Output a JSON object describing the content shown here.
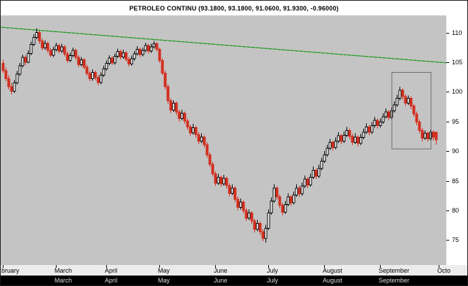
{
  "colors": {
    "background": "#c4c4c4",
    "up_fill": "#ffffff",
    "up_stroke": "#000000",
    "down": "#d22f1f",
    "trendline": "#2f9e2f",
    "box": "#6b6b6b"
  },
  "bottom_strip": {
    "labels": [
      {
        "label": "March",
        "i": 19
      },
      {
        "label": "April",
        "i": 37
      },
      {
        "label": "May",
        "i": 56
      },
      {
        "label": "June",
        "i": 76
      },
      {
        "label": "July",
        "i": 95
      },
      {
        "label": "August",
        "i": 115
      },
      {
        "label": "September",
        "i": 135
      }
    ]
  },
  "chart_data": {
    "type": "candlestick",
    "title": "PETROLEO CONTINU (93.1800, 93.1800, 91.0600, 91.9300, -0.96000)",
    "ylim": [
      70.8,
      112.9
    ],
    "y_ticks": [
      110,
      105,
      100,
      95,
      90,
      85,
      80,
      75
    ],
    "x_ticks": [
      {
        "label": "bruary",
        "i": 0
      },
      {
        "label": "March",
        "i": 19
      },
      {
        "label": "April",
        "i": 37
      },
      {
        "label": "May",
        "i": 56
      },
      {
        "label": "June",
        "i": 76
      },
      {
        "label": "July",
        "i": 95
      },
      {
        "label": "August",
        "i": 115
      },
      {
        "label": "September",
        "i": 135
      },
      {
        "label": "Octo",
        "i": 156
      }
    ],
    "trendline": {
      "from_value": 110.9,
      "to_value": 104.9
    },
    "highlight_box": {
      "from_index": 139.2,
      "to_index": 153.2,
      "top_value": 103.3,
      "bottom_value": 90.4
    },
    "last_quote": {
      "open": 93.18,
      "high": 93.18,
      "low": 91.06,
      "close": 91.93,
      "change": -0.96
    },
    "ohlc": [
      [
        104.8,
        105.4,
        103.2,
        103.6
      ],
      [
        103.6,
        104.1,
        101.8,
        102.2
      ],
      [
        102.2,
        102.8,
        100.4,
        100.9
      ],
      [
        100.9,
        101.5,
        99.6,
        100.1
      ],
      [
        100.1,
        102.0,
        99.8,
        101.5
      ],
      [
        101.5,
        103.5,
        101.2,
        103.0
      ],
      [
        103.0,
        104.9,
        102.7,
        104.4
      ],
      [
        104.4,
        106.3,
        104.1,
        105.8
      ],
      [
        105.8,
        106.2,
        104.5,
        105.0
      ],
      [
        105.0,
        107.0,
        104.8,
        106.5
      ],
      [
        106.5,
        108.5,
        106.2,
        108.0
      ],
      [
        108.0,
        109.7,
        107.7,
        109.2
      ],
      [
        109.2,
        110.7,
        108.9,
        110.0
      ],
      [
        110.0,
        110.3,
        108.1,
        108.6
      ],
      [
        108.6,
        109.0,
        107.0,
        107.4
      ],
      [
        107.4,
        108.7,
        107.1,
        108.2
      ],
      [
        108.2,
        108.5,
        106.6,
        107.0
      ],
      [
        107.0,
        107.4,
        105.8,
        106.2
      ],
      [
        106.2,
        107.6,
        105.9,
        107.1
      ],
      [
        107.1,
        108.3,
        106.8,
        107.8
      ],
      [
        107.8,
        108.1,
        106.5,
        106.9
      ],
      [
        106.9,
        108.1,
        106.6,
        107.6
      ],
      [
        107.6,
        107.9,
        106.0,
        106.4
      ],
      [
        106.4,
        106.8,
        104.9,
        105.3
      ],
      [
        105.3,
        106.6,
        105.0,
        106.1
      ],
      [
        106.1,
        107.5,
        105.8,
        107.0
      ],
      [
        107.0,
        107.3,
        105.4,
        105.8
      ],
      [
        105.8,
        106.2,
        104.2,
        104.6
      ],
      [
        104.6,
        105.9,
        104.3,
        105.4
      ],
      [
        105.4,
        105.7,
        103.8,
        104.2
      ],
      [
        104.2,
        104.6,
        102.7,
        103.1
      ],
      [
        103.1,
        103.5,
        101.8,
        102.2
      ],
      [
        102.2,
        103.8,
        101.9,
        103.3
      ],
      [
        103.3,
        103.6,
        102.0,
        102.4
      ],
      [
        102.4,
        102.8,
        101.1,
        101.6
      ],
      [
        101.6,
        103.3,
        101.3,
        102.8
      ],
      [
        102.8,
        104.4,
        102.5,
        103.9
      ],
      [
        103.9,
        105.3,
        103.6,
        104.8
      ],
      [
        104.8,
        106.2,
        104.5,
        105.7
      ],
      [
        105.7,
        106.0,
        104.5,
        104.9
      ],
      [
        104.9,
        106.5,
        104.6,
        106.0
      ],
      [
        106.0,
        107.3,
        105.7,
        106.8
      ],
      [
        106.8,
        107.1,
        105.5,
        105.9
      ],
      [
        105.9,
        107.1,
        105.6,
        106.6
      ],
      [
        106.6,
        106.9,
        105.1,
        105.5
      ],
      [
        105.5,
        105.9,
        104.3,
        104.7
      ],
      [
        104.7,
        106.1,
        104.4,
        105.6
      ],
      [
        105.6,
        106.9,
        105.3,
        106.4
      ],
      [
        106.4,
        107.7,
        106.1,
        107.2
      ],
      [
        107.2,
        107.5,
        105.9,
        106.3
      ],
      [
        106.3,
        107.5,
        106.0,
        107.0
      ],
      [
        107.0,
        108.3,
        106.7,
        107.8
      ],
      [
        107.8,
        108.1,
        106.5,
        106.9
      ],
      [
        106.9,
        108.1,
        106.6,
        107.6
      ],
      [
        107.6,
        108.6,
        107.3,
        108.1
      ],
      [
        108.1,
        108.4,
        106.8,
        107.2
      ],
      [
        107.2,
        107.5,
        104.9,
        105.3
      ],
      [
        105.3,
        105.7,
        102.8,
        103.2
      ],
      [
        103.2,
        103.6,
        100.4,
        100.9
      ],
      [
        100.9,
        101.3,
        98.0,
        98.5
      ],
      [
        98.5,
        98.9,
        96.4,
        96.9
      ],
      [
        96.9,
        98.6,
        96.6,
        98.1
      ],
      [
        98.1,
        98.4,
        96.1,
        96.6
      ],
      [
        96.6,
        97.0,
        95.0,
        95.5
      ],
      [
        95.5,
        97.0,
        95.2,
        96.4
      ],
      [
        96.4,
        96.7,
        94.6,
        95.1
      ],
      [
        95.1,
        95.5,
        93.6,
        94.1
      ],
      [
        94.1,
        94.5,
        92.6,
        93.1
      ],
      [
        93.1,
        94.6,
        92.8,
        94.0
      ],
      [
        94.0,
        94.3,
        92.3,
        92.8
      ],
      [
        92.8,
        93.2,
        91.2,
        91.7
      ],
      [
        91.7,
        93.0,
        91.4,
        92.4
      ],
      [
        92.4,
        92.7,
        90.6,
        91.1
      ],
      [
        91.1,
        91.5,
        88.9,
        89.4
      ],
      [
        89.4,
        89.8,
        87.3,
        87.8
      ],
      [
        87.8,
        88.2,
        85.7,
        86.2
      ],
      [
        86.2,
        86.6,
        84.1,
        84.6
      ],
      [
        84.6,
        86.2,
        84.3,
        85.6
      ],
      [
        85.6,
        85.9,
        84.0,
        84.5
      ],
      [
        84.5,
        86.0,
        84.2,
        85.4
      ],
      [
        85.4,
        85.7,
        83.7,
        84.2
      ],
      [
        84.2,
        84.6,
        82.4,
        82.9
      ],
      [
        82.9,
        84.4,
        82.6,
        83.8
      ],
      [
        83.8,
        84.1,
        81.4,
        81.9
      ],
      [
        81.9,
        82.3,
        80.0,
        80.5
      ],
      [
        80.5,
        82.0,
        80.2,
        81.4
      ],
      [
        81.4,
        81.7,
        79.5,
        80.0
      ],
      [
        80.0,
        80.4,
        78.2,
        78.7
      ],
      [
        78.7,
        80.2,
        78.4,
        79.6
      ],
      [
        79.6,
        79.9,
        77.7,
        78.2
      ],
      [
        78.2,
        78.6,
        76.3,
        76.8
      ],
      [
        76.8,
        78.4,
        76.5,
        77.8
      ],
      [
        77.8,
        78.1,
        75.9,
        76.4
      ],
      [
        76.4,
        76.8,
        74.8,
        75.3
      ],
      [
        75.3,
        77.6,
        74.6,
        77.0
      ],
      [
        77.0,
        80.2,
        76.7,
        79.6
      ],
      [
        79.6,
        82.2,
        79.3,
        81.6
      ],
      [
        81.6,
        84.4,
        81.3,
        83.8
      ],
      [
        83.8,
        84.1,
        81.8,
        82.3
      ],
      [
        82.3,
        82.7,
        80.4,
        80.9
      ],
      [
        80.9,
        81.3,
        79.2,
        79.7
      ],
      [
        79.7,
        81.6,
        79.4,
        81.0
      ],
      [
        81.0,
        82.9,
        80.7,
        82.3
      ],
      [
        82.3,
        82.6,
        80.8,
        81.3
      ],
      [
        81.3,
        83.2,
        81.0,
        82.6
      ],
      [
        82.6,
        84.4,
        82.3,
        83.8
      ],
      [
        83.8,
        84.1,
        82.3,
        82.8
      ],
      [
        82.8,
        84.7,
        82.5,
        84.1
      ],
      [
        84.1,
        85.9,
        83.8,
        85.3
      ],
      [
        85.3,
        85.6,
        83.8,
        84.3
      ],
      [
        84.3,
        86.2,
        84.0,
        85.6
      ],
      [
        85.6,
        87.4,
        85.3,
        86.8
      ],
      [
        86.8,
        87.1,
        85.3,
        85.8
      ],
      [
        85.8,
        87.7,
        85.5,
        87.1
      ],
      [
        87.1,
        88.9,
        86.8,
        88.3
      ],
      [
        88.3,
        90.0,
        88.0,
        89.4
      ],
      [
        89.4,
        91.1,
        89.1,
        90.5
      ],
      [
        90.5,
        92.1,
        90.2,
        91.5
      ],
      [
        91.5,
        91.8,
        90.1,
        90.6
      ],
      [
        90.6,
        92.3,
        90.3,
        91.7
      ],
      [
        91.7,
        93.2,
        91.4,
        92.6
      ],
      [
        92.6,
        92.9,
        91.2,
        91.7
      ],
      [
        91.7,
        93.3,
        91.4,
        92.7
      ],
      [
        92.7,
        94.1,
        92.4,
        93.5
      ],
      [
        93.5,
        93.8,
        92.0,
        92.5
      ],
      [
        92.5,
        92.9,
        91.0,
        91.5
      ],
      [
        91.5,
        93.0,
        91.2,
        92.4
      ],
      [
        92.4,
        92.7,
        90.8,
        91.3
      ],
      [
        91.3,
        92.9,
        91.0,
        92.3
      ],
      [
        92.3,
        93.8,
        92.0,
        93.2
      ],
      [
        93.2,
        94.7,
        92.9,
        94.1
      ],
      [
        94.1,
        94.4,
        92.7,
        93.2
      ],
      [
        93.2,
        94.9,
        92.9,
        94.3
      ],
      [
        94.3,
        95.8,
        94.0,
        95.2
      ],
      [
        95.2,
        95.5,
        93.8,
        94.3
      ],
      [
        94.3,
        95.5,
        94.0,
        94.9
      ],
      [
        94.9,
        96.4,
        94.6,
        95.8
      ],
      [
        95.8,
        97.2,
        95.5,
        96.6
      ],
      [
        96.6,
        96.9,
        95.2,
        95.7
      ],
      [
        95.7,
        97.4,
        95.4,
        96.8
      ],
      [
        96.8,
        98.4,
        96.5,
        97.8
      ],
      [
        97.8,
        99.5,
        97.5,
        98.9
      ],
      [
        98.9,
        100.9,
        98.6,
        100.3
      ],
      [
        100.3,
        100.6,
        98.7,
        99.2
      ],
      [
        99.2,
        99.6,
        97.6,
        98.1
      ],
      [
        98.1,
        99.4,
        97.8,
        98.9
      ],
      [
        98.9,
        99.2,
        97.1,
        97.6
      ],
      [
        97.6,
        98.0,
        95.8,
        96.3
      ],
      [
        96.3,
        96.7,
        94.4,
        94.9
      ],
      [
        94.9,
        95.3,
        93.0,
        93.5
      ],
      [
        93.5,
        93.9,
        91.6,
        92.2
      ],
      [
        92.2,
        93.5,
        91.9,
        93.0
      ],
      [
        93.0,
        93.3,
        91.6,
        92.1
      ],
      [
        92.1,
        93.7,
        91.8,
        93.2
      ],
      [
        93.2,
        93.5,
        91.8,
        92.4
      ],
      [
        93.18,
        93.18,
        91.06,
        91.93
      ]
    ]
  }
}
